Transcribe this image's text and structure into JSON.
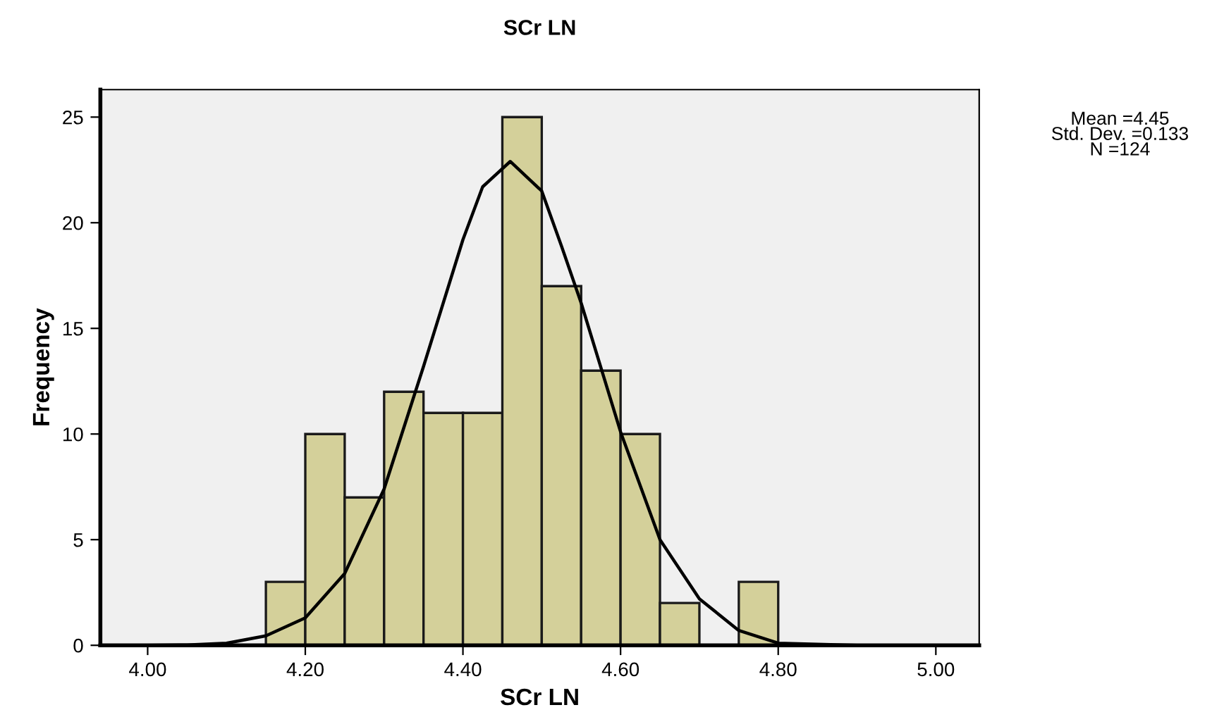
{
  "chart_data": {
    "type": "histogram",
    "title": "SCr LN",
    "xlabel": "SCr LN",
    "ylabel": "Frequency",
    "bins": [
      4.15,
      4.2,
      4.25,
      4.3,
      4.35,
      4.4,
      4.45,
      4.5,
      4.55,
      4.6,
      4.65,
      4.7,
      4.75,
      4.8
    ],
    "values": [
      3,
      10,
      7,
      12,
      11,
      11,
      25,
      17,
      13,
      10,
      2,
      0,
      3
    ],
    "color": "#d4d09a",
    "series": [
      {
        "type": "line",
        "color": "#000000",
        "x": [
          4.0,
          4.05,
          4.1,
          4.15,
          4.2,
          4.25,
          4.3,
          4.35,
          4.4,
          4.425,
          4.46,
          4.5,
          4.525,
          4.55,
          4.6,
          4.65,
          4.7,
          4.75,
          4.8,
          4.9,
          5.0
        ],
        "values": [
          0,
          0.02,
          0.1,
          0.45,
          1.3,
          3.4,
          7.4,
          13.2,
          19.2,
          21.7,
          22.9,
          21.5,
          18.9,
          16.2,
          10.1,
          5.0,
          2.2,
          0.7,
          0.1,
          0,
          0
        ]
      }
    ],
    "xlim": [
      3.94,
      5.055
    ],
    "ylim": [
      0,
      26.3
    ],
    "xticks": [
      {
        "value": 4.0,
        "label": "4.00"
      },
      {
        "value": 4.2,
        "label": "4.20"
      },
      {
        "value": 4.4,
        "label": "4.40"
      },
      {
        "value": 4.6,
        "label": "4.60"
      },
      {
        "value": 4.8,
        "label": "4.80"
      },
      {
        "value": 5.0,
        "label": "5.00"
      }
    ],
    "yticks": [
      0,
      5,
      10,
      15,
      20,
      25
    ],
    "grid": false,
    "legend": false,
    "annotations": [
      "Mean =4.45\nStd. Dev. =0.133\nN =124"
    ]
  }
}
